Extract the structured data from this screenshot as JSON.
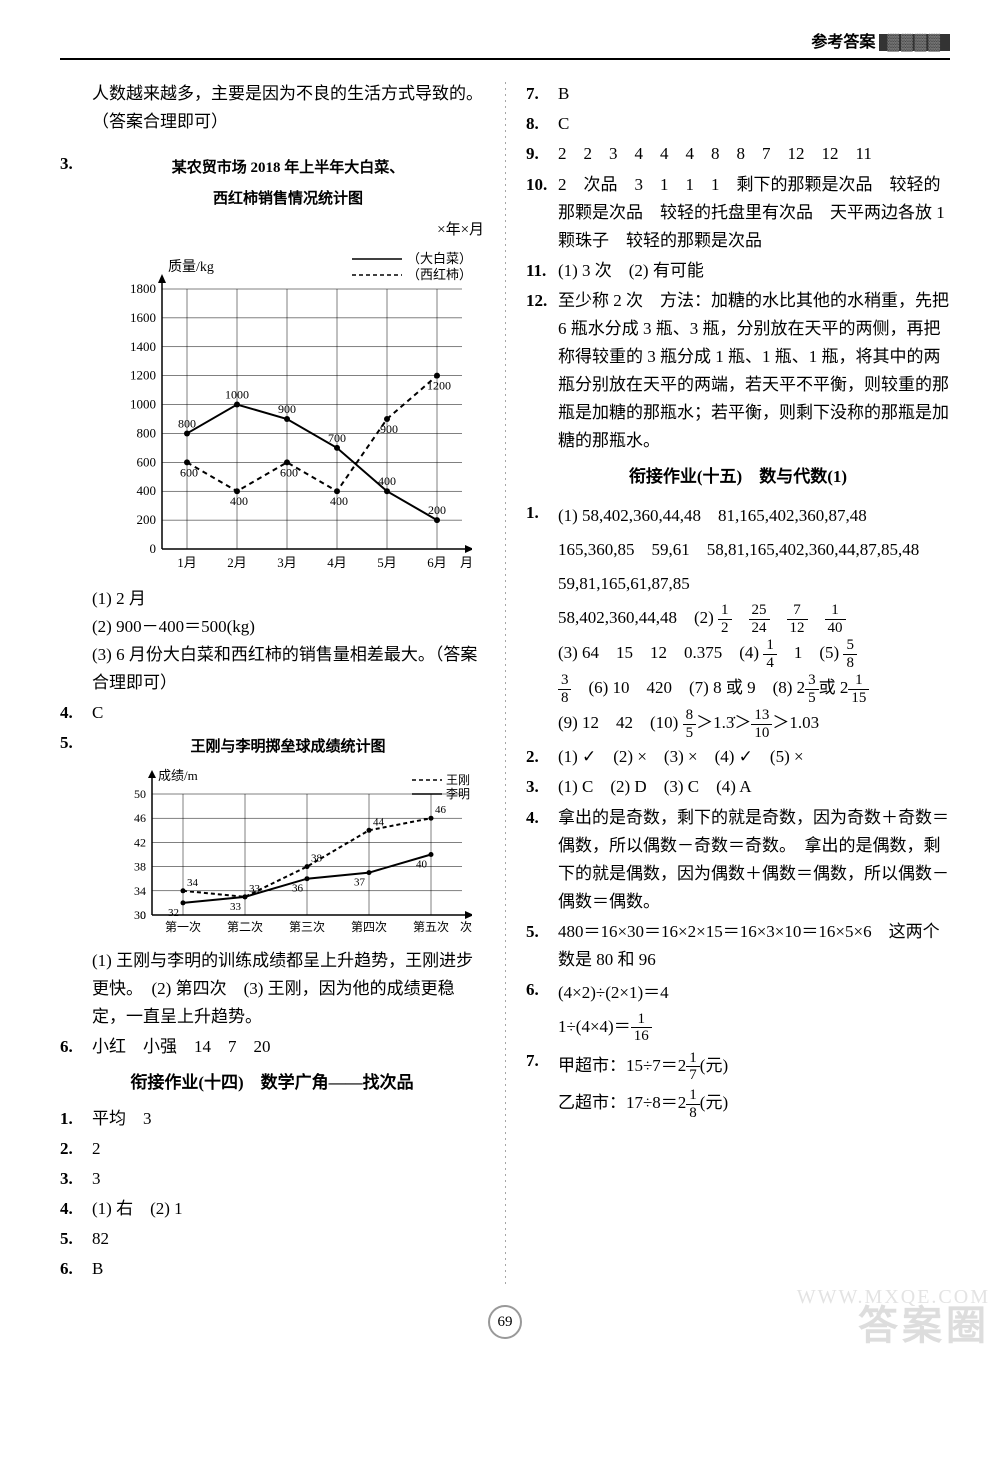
{
  "header": {
    "label": "参考答案",
    "decor": "▓▓▓▓"
  },
  "page_number": "69",
  "watermark_small": "WWW.MXQE.COM",
  "watermark_large": "答案圈",
  "left": {
    "intro": "人数越来越多，主要是因为不良的生活方式导致的。（答案合理即可）",
    "q3": {
      "num": "3.",
      "title1": "某农贸市场 2018 年上半年大白菜、",
      "title2": "西红柿销售情况统计图",
      "date": "×年×月",
      "chart": {
        "type": "line",
        "ylabel": "质量/kg",
        "xlabel": "月份",
        "legend": [
          {
            "label": "（大白菜）",
            "style": "solid"
          },
          {
            "label": "（西红柿）",
            "style": "dashed"
          }
        ],
        "categories": [
          "1月",
          "2月",
          "3月",
          "4月",
          "5月",
          "6月"
        ],
        "series_a": [
          800,
          1000,
          900,
          700,
          400,
          200
        ],
        "series_a_labels": [
          "800",
          "1000",
          "900",
          "700",
          "400",
          "200"
        ],
        "series_b": [
          600,
          400,
          600,
          400,
          900,
          1200
        ],
        "series_b_labels": [
          "600",
          "400",
          "600",
          "400",
          "900",
          "1200"
        ],
        "ylim": [
          0,
          1800
        ],
        "ytick_step": 200,
        "line_color": "#000",
        "bg": "#fff"
      },
      "a1": "(1) 2 月",
      "a2": "(2) 900－400＝500(kg)",
      "a3": "(3) 6 月份大白菜和西红柿的销售量相差最大。（答案合理即可）"
    },
    "q4": {
      "num": "4.",
      "ans": "C"
    },
    "q5": {
      "num": "5.",
      "title": "王刚与李明掷垒球成绩统计图",
      "chart": {
        "type": "line",
        "ylabel": "成绩/m",
        "xlabel": "次数",
        "legend": [
          {
            "label": "王刚",
            "style": "dashed"
          },
          {
            "label": "李明",
            "style": "solid"
          }
        ],
        "categories": [
          "第一次",
          "第二次",
          "第三次",
          "第四次",
          "第五次"
        ],
        "series_wg": [
          34,
          33,
          38,
          44,
          46
        ],
        "series_wg_labels": [
          "34",
          "33",
          "38",
          "44",
          "46"
        ],
        "series_lm": [
          32,
          33,
          36,
          37,
          40
        ],
        "series_lm_labels": [
          "32",
          "33",
          "36",
          "37",
          "40"
        ],
        "ylim": [
          30,
          50
        ],
        "yticks": [
          0,
          30,
          34,
          38,
          42,
          46,
          50
        ],
        "line_color": "#000",
        "bg": "#fff"
      },
      "a": "(1) 王刚与李明的训练成绩都呈上升趋势，王刚进步更快。　(2) 第四次　(3) 王刚，因为他的成绩更稳定，一直呈上升趋势。"
    },
    "q6": {
      "num": "6.",
      "ans": "小红　小强　14　7　20"
    },
    "section_title": "衔接作业(十四)　数学广角——找次品",
    "s1": {
      "num": "1.",
      "ans": "平均　3"
    },
    "s2": {
      "num": "2.",
      "ans": "2"
    },
    "s3": {
      "num": "3.",
      "ans": "3"
    },
    "s4": {
      "num": "4.",
      "ans": "(1) 右　(2) 1"
    },
    "s5": {
      "num": "5.",
      "ans": "82"
    },
    "s6": {
      "num": "6.",
      "ans": "B"
    }
  },
  "right": {
    "q7": {
      "num": "7.",
      "ans": "B"
    },
    "q8": {
      "num": "8.",
      "ans": "C"
    },
    "q9": {
      "num": "9.",
      "ans": "2　2　3　4　4　4　8　8　7　12　12　11"
    },
    "q10": {
      "num": "10.",
      "ans": "2　次品　3　1　1　1　剩下的那颗是次品　较轻的那颗是次品　较轻的托盘里有次品　天平两边各放 1 颗珠子　较轻的那颗是次品"
    },
    "q11": {
      "num": "11.",
      "ans": "(1) 3 次　(2) 有可能"
    },
    "q12": {
      "num": "12.",
      "ans": "至少称 2 次　方法：加糖的水比其他的水稍重，先把 6 瓶水分成 3 瓶、3 瓶，分别放在天平的两侧，再把称得较重的 3 瓶分成 1 瓶、1 瓶、1 瓶，将其中的两瓶分别放在天平的两端，若天平不平衡，则较重的那瓶是加糖的那瓶水；若平衡，则剩下没称的那瓶是加糖的那瓶水。"
    },
    "section_title": "衔接作业(十五)　数与代数(1)",
    "r1": {
      "num": "1.",
      "p1": "(1) 58,402,360,44,48　81,165,402,360,87,48　165,360,85　59,61　58,81,165,402,360,44,87,85,48　59,81,165,61,87,85",
      "p2_pre": "58,402,360,44,48　(2) ",
      "fracs2": [
        {
          "n": "1",
          "d": "2"
        },
        {
          "n": "25",
          "d": "24"
        },
        {
          "n": "7",
          "d": "12"
        },
        {
          "n": "1",
          "d": "40"
        }
      ],
      "p3": "(3) 64　15　12　0.375　(4) ",
      "frac4a": {
        "n": "1",
        "d": "4"
      },
      "p4_mid": "　1　(5) ",
      "frac5a": {
        "n": "5",
        "d": "8"
      },
      "frac5b": {
        "n": "3",
        "d": "8"
      },
      "p6": "　(6) 10　420　(7) 8 或 9　(8) 2",
      "frac8a": {
        "n": "3",
        "d": "5"
      },
      "p8_mid": "或 2",
      "frac8b": {
        "n": "1",
        "d": "15"
      },
      "p9": "(9) 12　42　(10) ",
      "frac10a": {
        "n": "8",
        "d": "5"
      },
      "p10_mid": "＞1.3̇＞",
      "frac10b": {
        "n": "13",
        "d": "10"
      },
      "p10_end": "＞1.03"
    },
    "r2": {
      "num": "2.",
      "ans": "(1) ✓　(2) ×　(3) ×　(4) ✓　(5) ×"
    },
    "r3": {
      "num": "3.",
      "ans": "(1) C　(2) D　(3) C　(4) A"
    },
    "r4": {
      "num": "4.",
      "ans": "拿出的是奇数，剩下的就是奇数，因为奇数＋奇数＝偶数，所以偶数－奇数＝奇数。　拿出的是偶数，剩下的就是偶数，因为偶数＋偶数＝偶数，所以偶数－偶数＝偶数。"
    },
    "r5": {
      "num": "5.",
      "ans": "480＝16×30＝16×2×15＝16×3×10＝16×5×6　这两个数是 80 和 96"
    },
    "r6": {
      "num": "6.",
      "l1": "(4×2)÷(2×1)＝4",
      "l2_pre": "1÷(4×4)＝",
      "frac": {
        "n": "1",
        "d": "16"
      }
    },
    "r7": {
      "num": "7.",
      "l1_pre": "甲超市：15÷7＝2",
      "frac1": {
        "n": "1",
        "d": "7"
      },
      "l1_suf": "(元)",
      "l2_pre": "乙超市：17÷8＝2",
      "frac2": {
        "n": "1",
        "d": "8"
      },
      "l2_suf": "(元)"
    }
  }
}
